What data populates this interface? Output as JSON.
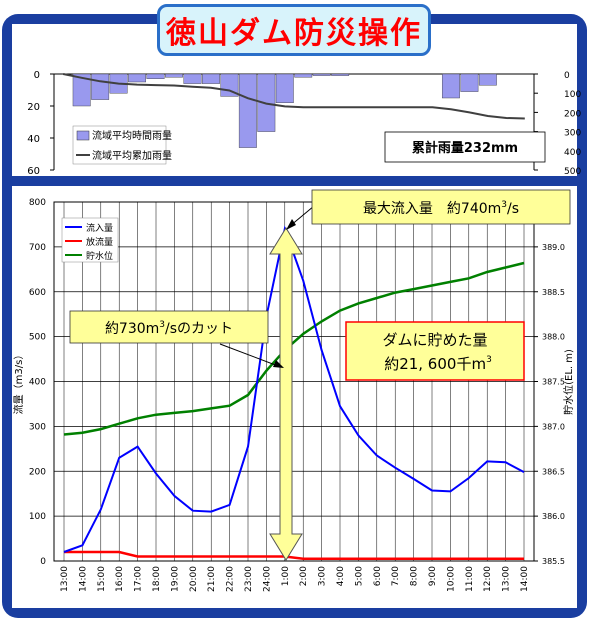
{
  "title": "徳山ダム防災操作",
  "colors": {
    "frame": "#1a3ea0",
    "rain_bar": "#9999ee",
    "cumulative": "#404040",
    "inflow": "#0000ff",
    "outflow": "#ff0000",
    "water_level": "#008000",
    "arrow_fill": "#ffff99",
    "callout_fill": "#ffff99"
  },
  "chart_data": [
    {
      "type": "bar",
      "subtitle": "rainfall",
      "legend": [
        "流域平均時間雨量",
        "流域平均累加雨量"
      ],
      "legend_position": "bottom-left",
      "annotation": "累計雨量232mm",
      "left_axis": {
        "ylim": [
          0,
          60
        ],
        "reversed": true,
        "ticks": [
          "0",
          "20",
          "40",
          "60"
        ]
      },
      "right_axis": {
        "ylim": [
          0,
          500
        ],
        "reversed": true,
        "ticks": [
          "0",
          "100",
          "200",
          "300",
          "400",
          "500"
        ]
      },
      "categories": [
        "13:00",
        "14:00",
        "15:00",
        "16:00",
        "17:00",
        "18:00",
        "19:00",
        "20:00",
        "21:00",
        "22:00",
        "23:00",
        "24:00",
        "1:00",
        "2:00",
        "3:00",
        "4:00",
        "5:00",
        "6:00",
        "7:00",
        "8:00",
        "9:00",
        "10:00",
        "11:00",
        "12:00",
        "13:00",
        "14:00"
      ],
      "series": [
        {
          "name": "流域平均時間雨量",
          "kind": "bar",
          "axis": "left",
          "values": [
            0,
            20,
            16,
            12,
            5,
            3,
            2,
            6,
            6,
            14,
            46,
            36,
            18,
            2,
            1,
            1,
            0,
            0,
            0,
            0,
            0,
            15,
            11,
            7,
            0,
            0
          ]
        },
        {
          "name": "流域平均累加雨量",
          "kind": "line",
          "axis": "right",
          "values": [
            0,
            20,
            38,
            50,
            55,
            58,
            60,
            66,
            72,
            86,
            126,
            154,
            169,
            173,
            173,
            173,
            173,
            173,
            173,
            173,
            173,
            184,
            200,
            219,
            229,
            232
          ]
        }
      ]
    },
    {
      "type": "line",
      "ylabel": "流量（m3/s）",
      "y2label": "貯水位(EL. m)",
      "ylim": [
        0,
        800
      ],
      "y2lim": [
        385.5,
        389.5
      ],
      "yticks": [
        "0",
        "100",
        "200",
        "300",
        "400",
        "500",
        "600",
        "700",
        "800"
      ],
      "y2ticks": [
        "385.5",
        "386.0",
        "386.5",
        "387.0",
        "387.5",
        "388.0",
        "388.5",
        "389.0"
      ],
      "legend_position": "top-left",
      "x": [
        "13:00",
        "14:00",
        "15:00",
        "16:00",
        "17:00",
        "18:00",
        "19:00",
        "20:00",
        "21:00",
        "22:00",
        "23:00",
        "24:00",
        "1:00",
        "2:00",
        "3:00",
        "4:00",
        "5:00",
        "6:00",
        "7:00",
        "8:00",
        "9:00",
        "10:00",
        "11:00",
        "12:00",
        "13:00",
        "14:00"
      ],
      "series": [
        {
          "name": "流入量",
          "axis": "left",
          "values": [
            20,
            35,
            115,
            230,
            255,
            195,
            145,
            112,
            110,
            125,
            255,
            545,
            740,
            625,
            470,
            345,
            280,
            235,
            208,
            183,
            157,
            155,
            185,
            222,
            220,
            198
          ]
        },
        {
          "name": "放流量",
          "axis": "left",
          "values": [
            20,
            20,
            20,
            20,
            10,
            10,
            10,
            10,
            10,
            10,
            10,
            10,
            10,
            5,
            5,
            5,
            5,
            5,
            5,
            5,
            5,
            5,
            5,
            5,
            5,
            5
          ]
        },
        {
          "name": "貯水位",
          "axis": "right",
          "values": [
            386.91,
            386.93,
            386.97,
            387.03,
            387.09,
            387.13,
            387.15,
            387.17,
            387.2,
            387.23,
            387.35,
            387.62,
            387.85,
            388.03,
            388.17,
            388.29,
            388.37,
            388.43,
            388.49,
            388.53,
            388.57,
            388.61,
            388.65,
            388.72,
            388.77,
            388.82
          ]
        }
      ],
      "annotations": [
        {
          "id": "peak",
          "text_a": "最大流入量　約740m",
          "sup": "3",
          "text_b": "/s"
        },
        {
          "id": "cut",
          "text_a": "約730m",
          "sup": "3",
          "text_b": "/sのカット"
        },
        {
          "id": "stored",
          "line1": "ダムに貯めた量",
          "line2a": "約21, 600千m",
          "sup": "3"
        }
      ]
    }
  ]
}
